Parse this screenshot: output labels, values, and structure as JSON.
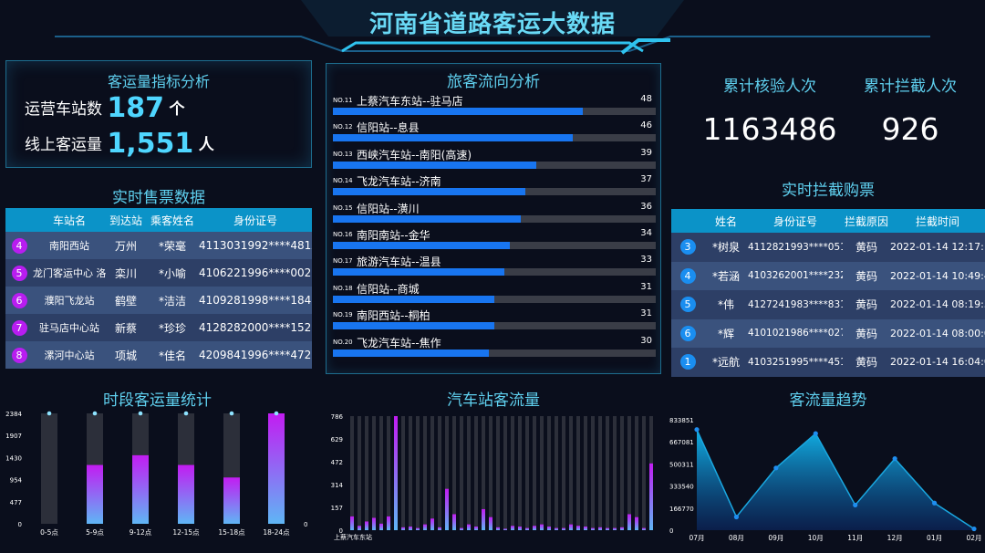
{
  "title": "河南省道路客运大数据",
  "kpi": {
    "title": "客运量指标分析",
    "stations_label": "运营车站数",
    "stations_value": "187",
    "stations_unit": "个",
    "online_label": "线上客运量",
    "online_value": "1,551",
    "online_unit": "人"
  },
  "ticket": {
    "title": "实时售票数据",
    "headers": [
      "车站名",
      "到达站",
      "乘客姓名",
      "身份证号"
    ],
    "rows": [
      {
        "no": "4",
        "station": "南阳西站",
        "dest": "万州",
        "name": "*荣毫",
        "id": "4113031992****481X"
      },
      {
        "no": "5",
        "station": "龙门客运中心 洛阳",
        "dest": "栾川",
        "name": "*小喻",
        "id": "4106221996****0025"
      },
      {
        "no": "6",
        "station": "濮阳飞龙站",
        "dest": "鹤壁",
        "name": "*洁洁",
        "id": "4109281998****1847"
      },
      {
        "no": "7",
        "station": "驻马店中心站",
        "dest": "新蔡",
        "name": "*珍珍",
        "id": "4128282000****1523"
      },
      {
        "no": "8",
        "station": "漯河中心站",
        "dest": "项城",
        "name": "*佳名",
        "id": "4209841996****4723"
      }
    ]
  },
  "flow": {
    "title": "旅客流向分析",
    "items": [
      {
        "no": "NO.11",
        "route": "上蔡汽车东站--驻马店",
        "value": 48
      },
      {
        "no": "NO.12",
        "route": "信阳站--息县",
        "value": 46
      },
      {
        "no": "NO.13",
        "route": "西峡汽车站--南阳(高速)",
        "value": 39
      },
      {
        "no": "NO.14",
        "route": "飞龙汽车站--济南",
        "value": 37
      },
      {
        "no": "NO.15",
        "route": "信阳站--潢川",
        "value": 36
      },
      {
        "no": "NO.16",
        "route": "南阳南站--金华",
        "value": 34
      },
      {
        "no": "NO.17",
        "route": "旅游汽车站--温县",
        "value": 33
      },
      {
        "no": "NO.18",
        "route": "信阳站--商城",
        "value": 31
      },
      {
        "no": "NO.19",
        "route": "南阳西站--桐柏",
        "value": 31
      },
      {
        "no": "NO.20",
        "route": "飞龙汽车站--焦作",
        "value": 30
      }
    ]
  },
  "verify": {
    "label": "累计核验人次",
    "value": "1163486"
  },
  "intercept": {
    "label": "累计拦截人次",
    "value": "926"
  },
  "block": {
    "title": "实时拦截购票",
    "headers": [
      "姓名",
      "身份证号",
      "拦截原因",
      "拦截时间"
    ],
    "rows": [
      {
        "no": "3",
        "name": "*树泉",
        "id": "4112821993****0514",
        "reason": "黄码",
        "time": "2022-01-14 12:17:18"
      },
      {
        "no": "4",
        "name": "*若涵",
        "id": "4103262001****2328",
        "reason": "黄码",
        "time": "2022-01-14 10:49:41"
      },
      {
        "no": "5",
        "name": "*伟",
        "id": "4127241983****8317",
        "reason": "黄码",
        "time": "2022-01-14 08:19:32"
      },
      {
        "no": "6",
        "name": "*辉",
        "id": "4101021986****0279",
        "reason": "黄码",
        "time": "2022-01-14 08:00:04"
      },
      {
        "no": "1",
        "name": "*远航",
        "id": "4103251995****4515",
        "reason": "黄码",
        "time": "2022-01-14 16:04:04"
      }
    ]
  },
  "period_chart": {
    "title": "时段客运量统计",
    "categories": [
      "0-5点",
      "5-9点",
      "9-12点",
      "12-15点",
      "15-18点",
      "18-24点"
    ],
    "values": [
      0,
      1270,
      1480,
      1270,
      1000,
      2384
    ],
    "yticks": [
      "2384",
      "1907",
      "1430",
      "954",
      "477",
      "0"
    ],
    "right_axis_label": "0"
  },
  "station_chart": {
    "title": "汽车站客流量",
    "yticks": [
      "786",
      "629",
      "472",
      "314",
      "157",
      "0"
    ],
    "xlabel_first": "上蔡汽车东站"
  },
  "trend_chart": {
    "title": "客流量趋势",
    "yticks": [
      "833851",
      "667081",
      "500311",
      "333540",
      "166770",
      "0"
    ]
  },
  "chart_data": [
    {
      "type": "bar",
      "title": "时段客运量统计",
      "categories": [
        "0-5点",
        "5-9点",
        "9-12点",
        "12-15点",
        "15-18点",
        "18-24点"
      ],
      "values": [
        0,
        1270,
        1480,
        1270,
        1000,
        2384
      ],
      "ylim": [
        0,
        2384
      ]
    },
    {
      "type": "bar",
      "title": "汽车站客流量",
      "ylim": [
        0,
        786
      ],
      "values": [
        95,
        30,
        60,
        85,
        45,
        95,
        786,
        20,
        25,
        15,
        40,
        80,
        20,
        285,
        110,
        15,
        40,
        25,
        145,
        90,
        20,
        10,
        30,
        25,
        15,
        30,
        40,
        25,
        15,
        15,
        40,
        30,
        25,
        15,
        20,
        15,
        15,
        20,
        110,
        90,
        15,
        460
      ]
    },
    {
      "type": "area",
      "title": "客流量趋势",
      "categories": [
        "07月",
        "08月",
        "09月",
        "10月",
        "11月",
        "12月",
        "01月",
        "02月"
      ],
      "values": [
        760000,
        100000,
        470000,
        730000,
        190000,
        540000,
        205000,
        10000
      ],
      "ylim": [
        0,
        833851
      ]
    }
  ],
  "colors": {
    "accent": "#5fd0ef",
    "bar_blue": "#1875f0",
    "purple": "#b81df0",
    "badge": [
      "#b81df0",
      "#1a8ef0"
    ]
  }
}
